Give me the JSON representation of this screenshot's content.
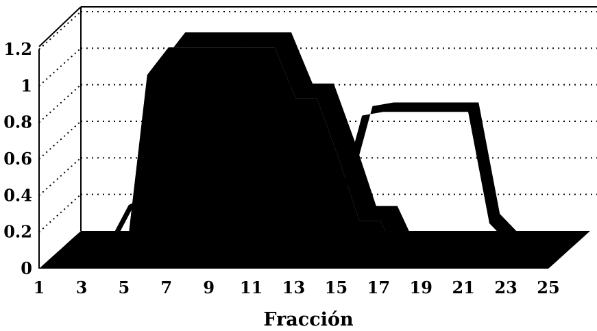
{
  "chart_data": {
    "type": "area",
    "title": "",
    "xlabel": "Fracción",
    "ylabel": "",
    "x": [
      1,
      2,
      3,
      4,
      5,
      6,
      7,
      8,
      9,
      10,
      11,
      12,
      13,
      14,
      15,
      16,
      17,
      18,
      19,
      20,
      21,
      22,
      23,
      24,
      25
    ],
    "xticks": [
      "1",
      "3",
      "5",
      "7",
      "9",
      "11",
      "13",
      "15",
      "17",
      "19",
      "21",
      "23",
      "25"
    ],
    "yticks": [
      "0",
      "0.2",
      "0.4",
      "0.6",
      "0.8",
      "1",
      "1.2"
    ],
    "ylim": [
      0,
      1.2
    ],
    "grid": true,
    "series": [
      {
        "values": [
          0,
          0,
          0,
          0.05,
          0.05,
          1.05,
          1.2,
          1.2,
          1.2,
          1.2,
          1.2,
          1.2,
          0.92,
          0.92,
          0.6,
          0.25,
          0.25,
          0,
          0,
          0,
          0,
          0,
          0,
          0,
          0
        ]
      },
      {
        "values": [
          0,
          0,
          0,
          0.22,
          0.28,
          0.28,
          0.28,
          0.28,
          0.28,
          0.28,
          0.28,
          0.28,
          0.28,
          0.28,
          0.71,
          0.73,
          0.73,
          0.73,
          0.73,
          0.73,
          0.12,
          0,
          0,
          0,
          0
        ]
      }
    ]
  }
}
